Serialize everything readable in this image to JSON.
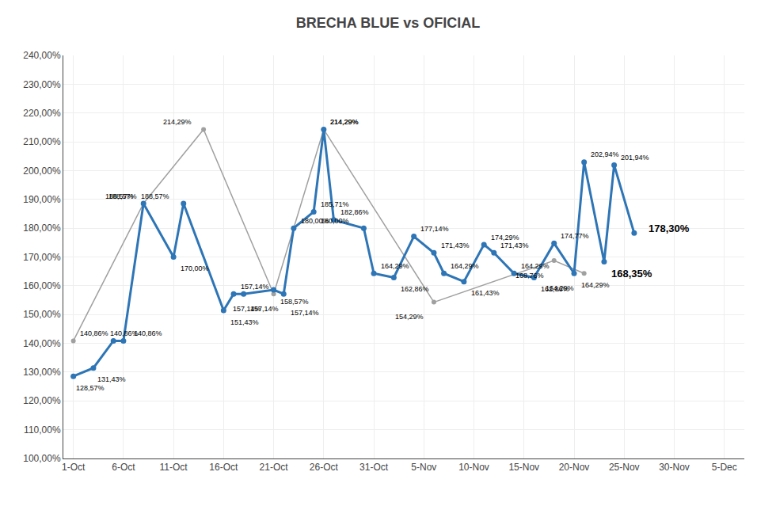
{
  "chart_data": {
    "type": "line",
    "title": "BRECHA BLUE vs OFICIAL",
    "series": [
      {
        "color": "#A0A0A0",
        "x": [
          0,
          7,
          13,
          20,
          25,
          36,
          48,
          51
        ],
        "values": [
          140.86,
          188.57,
          214.29,
          157.14,
          214.29,
          154.29,
          168.76,
          164.29
        ],
        "value_labels": [
          "140,86%",
          "188,57%",
          "214,29%",
          "157,14%",
          "214,29%",
          "154,29%",
          "168,76%",
          "164,29%"
        ]
      },
      {
        "color": "#2E75B6",
        "x": [
          0,
          2,
          4,
          5,
          7,
          10,
          11,
          15,
          16,
          17,
          20,
          21,
          22,
          24,
          25,
          26,
          29,
          30,
          32,
          34,
          36,
          37,
          39,
          41,
          42,
          44,
          46,
          48,
          50,
          51,
          53,
          54,
          56
        ],
        "values": [
          128.57,
          131.43,
          140.86,
          140.86,
          188.57,
          170.0,
          188.57,
          151.43,
          157.14,
          157.14,
          158.57,
          157.14,
          180.0,
          185.71,
          214.29,
          182.86,
          180.0,
          164.29,
          162.86,
          177.14,
          171.43,
          164.29,
          161.43,
          174.29,
          171.43,
          164.29,
          162.86,
          174.77,
          164.29,
          202.94,
          168.35,
          201.94,
          178.3
        ],
        "value_labels": [
          "128,57%",
          "131,43%",
          "140,86%",
          "140,86%",
          "188,57%",
          "170,00%",
          "188,57%",
          "151,43%",
          "157,14%",
          "157,14%",
          "158,57%",
          "157,14%",
          "180,00%",
          "185,71%",
          "214,29%",
          "182,86%",
          "180,00%",
          "164,29%",
          "162,86%",
          "177,14%",
          "171,43%",
          "164,29%",
          "161,43%",
          "174,29%",
          "171,43%",
          "164,29%",
          "162,86%",
          "174,77%",
          "164,29%",
          "202,94%",
          "168,35%",
          "201,94%",
          "178,30%"
        ]
      }
    ],
    "xlim": [
      -1,
      67
    ],
    "xticks": [
      {
        "value": 0,
        "label": "1-Oct"
      },
      {
        "value": 5,
        "label": "6-Oct"
      },
      {
        "value": 10,
        "label": "11-Oct"
      },
      {
        "value": 15,
        "label": "16-Oct"
      },
      {
        "value": 20,
        "label": "21-Oct"
      },
      {
        "value": 25,
        "label": "26-Oct"
      },
      {
        "value": 30,
        "label": "31-Oct"
      },
      {
        "value": 35,
        "label": "5-Nov"
      },
      {
        "value": 40,
        "label": "10-Nov"
      },
      {
        "value": 45,
        "label": "15-Nov"
      },
      {
        "value": 50,
        "label": "20-Nov"
      },
      {
        "value": 55,
        "label": "25-Nov"
      },
      {
        "value": 60,
        "label": "30-Nov"
      },
      {
        "value": 65,
        "label": "5-Dec"
      }
    ],
    "ylim": [
      100,
      240
    ],
    "yticks": [
      {
        "value": 100,
        "label": "100,00%"
      },
      {
        "value": 110,
        "label": "110,00%"
      },
      {
        "value": 120,
        "label": "120,00%"
      },
      {
        "value": 130,
        "label": "130,00%"
      },
      {
        "value": 140,
        "label": "140,00%"
      },
      {
        "value": 150,
        "label": "150,00%"
      },
      {
        "value": 160,
        "label": "160,00%"
      },
      {
        "value": 170,
        "label": "170,00%"
      },
      {
        "value": 180,
        "label": "180,00%"
      },
      {
        "value": 190,
        "label": "190,00%"
      },
      {
        "value": 200,
        "label": "200,00%"
      },
      {
        "value": 210,
        "label": "210,00%"
      },
      {
        "value": 220,
        "label": "220,00%"
      },
      {
        "value": 230,
        "label": "230,00%"
      },
      {
        "value": 240,
        "label": "240,00%"
      }
    ],
    "grid": true,
    "data_labels": true,
    "marker": "circle"
  }
}
